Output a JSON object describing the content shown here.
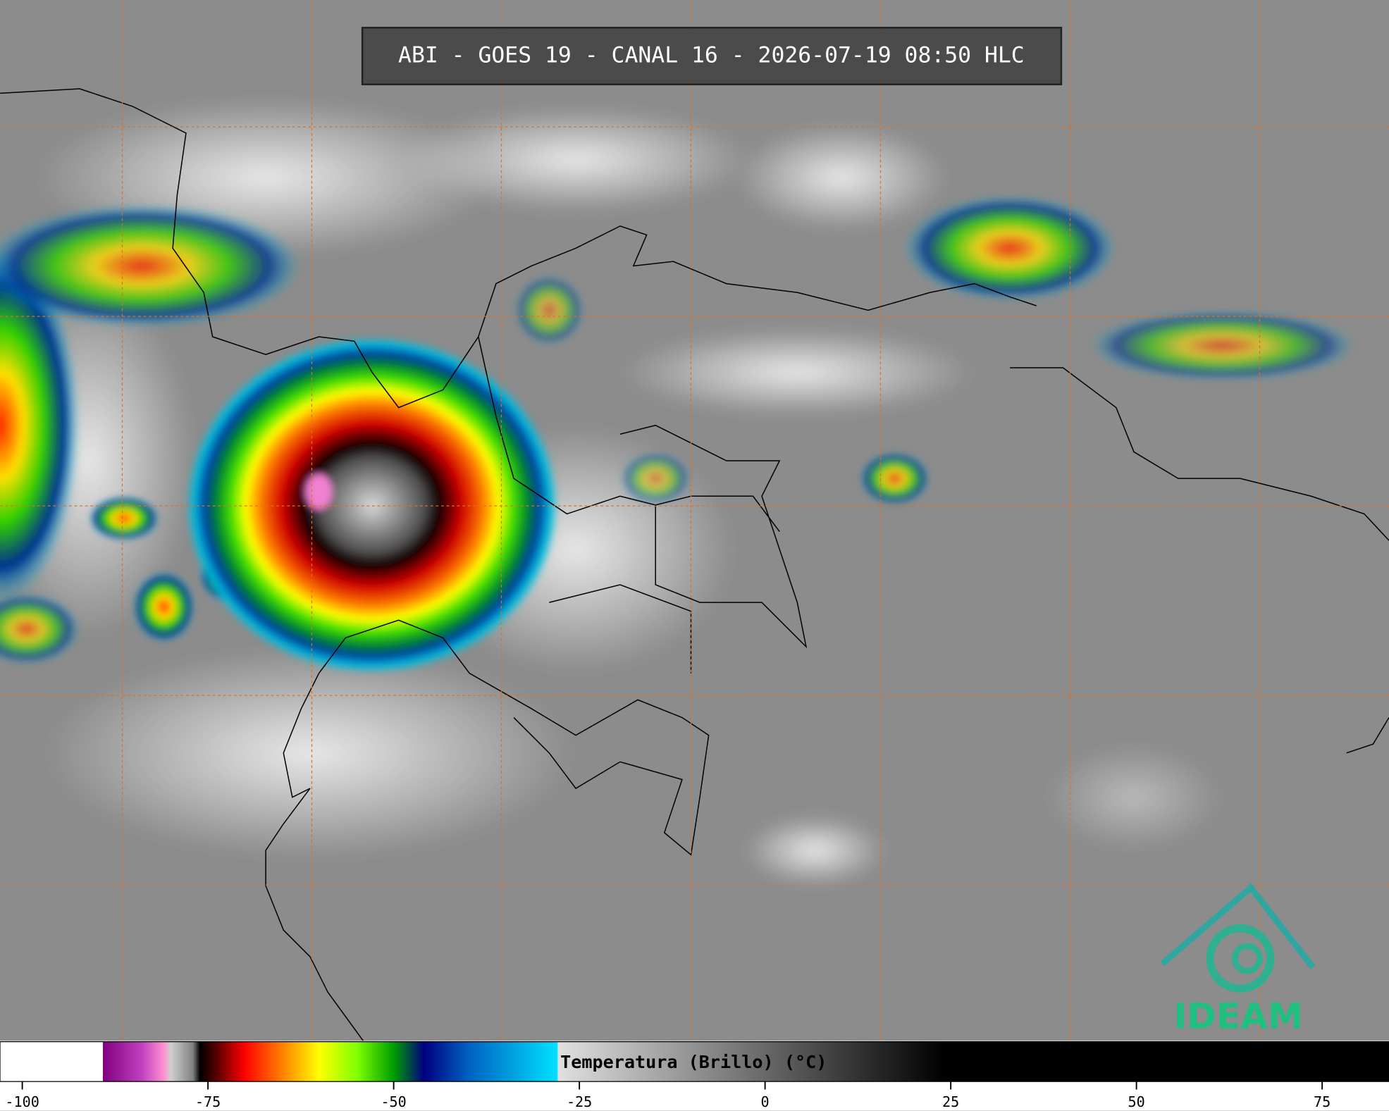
{
  "title": "ABI - GOES 19 - CANAL 16 - 2026-07-19 08:50 HLC",
  "logo": "IDEAM",
  "colorbar": {
    "label": "Temperatura (Brillo) (°C)",
    "lim": [
      -103,
      84
    ],
    "ticks": [
      -100,
      -75,
      -50,
      -25,
      0,
      25,
      50,
      75
    ]
  }
}
